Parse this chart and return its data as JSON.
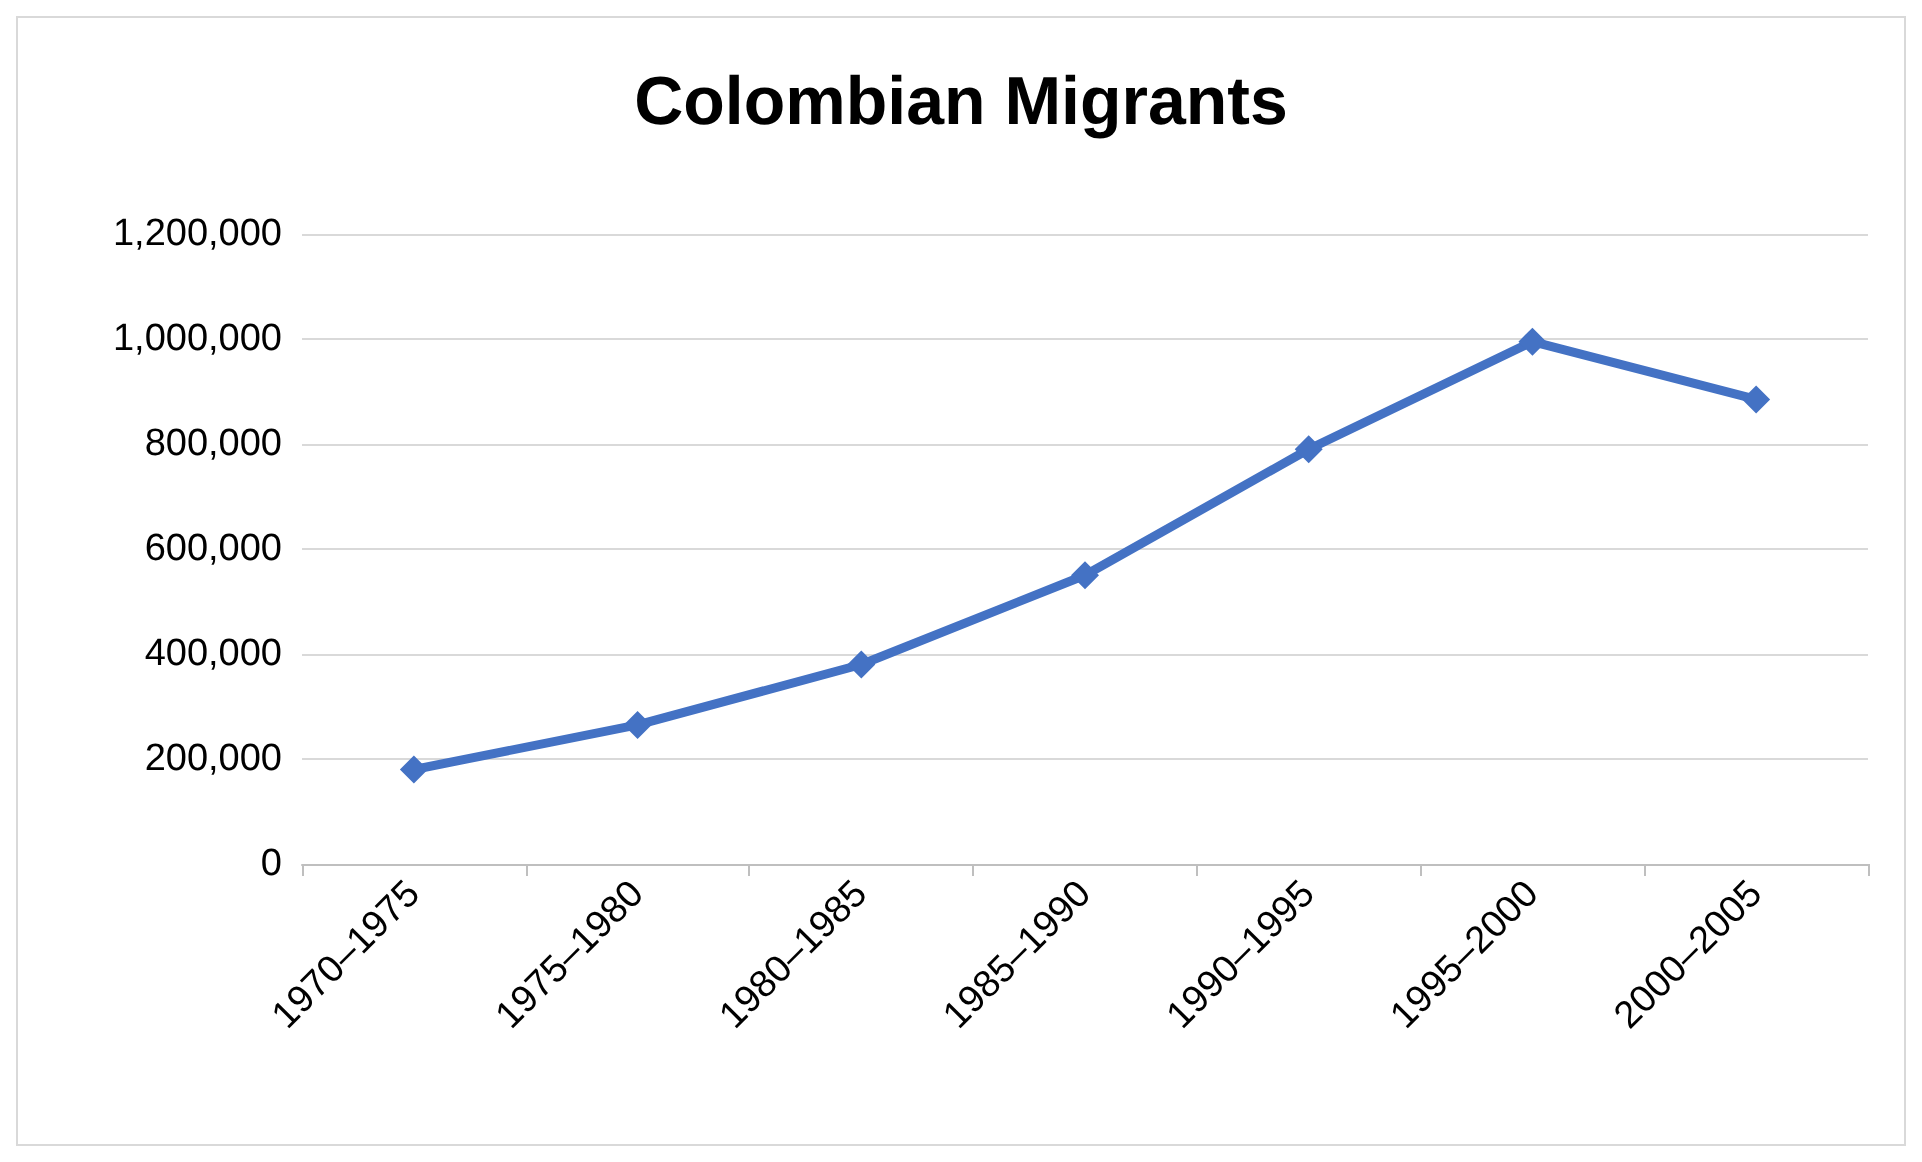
{
  "chart_data": {
    "type": "line",
    "title": "Colombian Migrants",
    "categories": [
      "1970–1975",
      "1975–1980",
      "1980–1985",
      "1985–1990",
      "1990–1995",
      "1995–2000",
      "2000–2005"
    ],
    "series": [
      {
        "color": "#4472c4",
        "values": [
          180000,
          265000,
          380000,
          550000,
          790000,
          995000,
          885000
        ]
      }
    ],
    "ylim": [
      0,
      1200000
    ],
    "yticks": [
      {
        "value": 0,
        "label": "0"
      },
      {
        "value": 200000,
        "label": "200,000"
      },
      {
        "value": 400000,
        "label": "400,000"
      },
      {
        "value": 600000,
        "label": "600,000"
      },
      {
        "value": 800000,
        "label": "800,000"
      },
      {
        "value": 1000000,
        "label": "1,000,000"
      },
      {
        "value": 1200000,
        "label": "1,200,000"
      }
    ],
    "grid": "y",
    "marker": "diamond",
    "line_style": "solid"
  }
}
